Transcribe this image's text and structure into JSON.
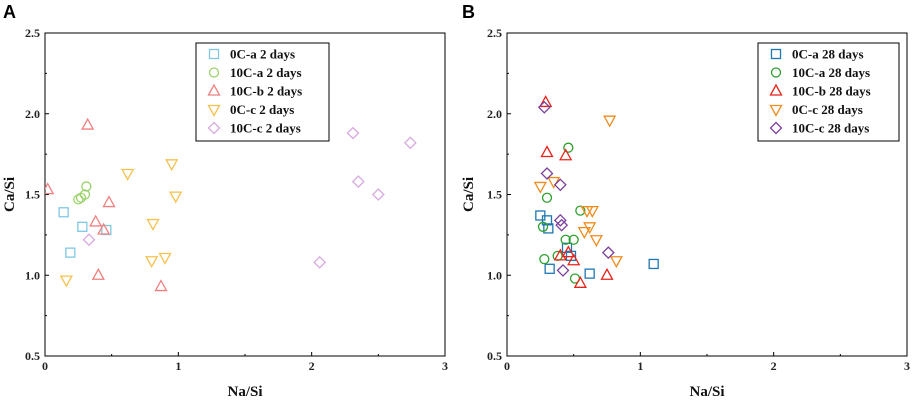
{
  "chart_data": [
    {
      "type": "scatter",
      "panel_label": "A",
      "xlabel": "Na/Si",
      "ylabel": "Ca/Si",
      "xlim": [
        0,
        3
      ],
      "ylim": [
        0.5,
        2.5
      ],
      "xticks": [
        "0",
        "1",
        "2",
        "3"
      ],
      "yticks": [
        "0.5",
        "1.0",
        "1.5",
        "2.0",
        "2.5"
      ],
      "legend_position": "top-right",
      "series": [
        {
          "name": "0C-a 2 days",
          "marker": "square",
          "color": "#7ec8e3",
          "points": [
            [
              0.14,
              1.39
            ],
            [
              0.19,
              1.14
            ],
            [
              0.28,
              1.3
            ],
            [
              0.46,
              1.28
            ]
          ]
        },
        {
          "name": "10C-a 2 days",
          "marker": "circle",
          "color": "#9ad36a",
          "points": [
            [
              0.25,
              1.47
            ],
            [
              0.27,
              1.48
            ],
            [
              0.3,
              1.5
            ],
            [
              0.31,
              1.55
            ]
          ]
        },
        {
          "name": "10C-b 2 days",
          "marker": "triangle-up",
          "color": "#f08080",
          "points": [
            [
              0.02,
              1.53
            ],
            [
              0.32,
              1.93
            ],
            [
              0.38,
              1.33
            ],
            [
              0.4,
              1.0
            ],
            [
              0.44,
              1.28
            ],
            [
              0.48,
              1.45
            ],
            [
              0.87,
              0.93
            ]
          ]
        },
        {
          "name": "0C-c 2 days",
          "marker": "triangle-down",
          "color": "#f7c14e",
          "points": [
            [
              0.16,
              0.97
            ],
            [
              0.62,
              1.63
            ],
            [
              0.8,
              1.09
            ],
            [
              0.81,
              1.32
            ],
            [
              0.9,
              1.11
            ],
            [
              0.95,
              1.69
            ],
            [
              0.98,
              1.49
            ]
          ]
        },
        {
          "name": "10C-c 2 days",
          "marker": "diamond",
          "color": "#d8a8e0",
          "points": [
            [
              0.33,
              1.22
            ],
            [
              2.06,
              1.08
            ],
            [
              2.31,
              1.88
            ],
            [
              2.35,
              1.58
            ],
            [
              2.5,
              1.5
            ],
            [
              2.74,
              1.82
            ]
          ]
        }
      ]
    },
    {
      "type": "scatter",
      "panel_label": "B",
      "xlabel": "Na/Si",
      "ylabel": "Ca/Si",
      "xlim": [
        0,
        3
      ],
      "ylim": [
        0.5,
        2.5
      ],
      "xticks": [
        "0",
        "1",
        "2",
        "3"
      ],
      "yticks": [
        "0.5",
        "1.0",
        "1.5",
        "2.0",
        "2.5"
      ],
      "legend_position": "top-right",
      "series": [
        {
          "name": "0C-a 28 days",
          "marker": "square",
          "color": "#1f77b4",
          "points": [
            [
              0.25,
              1.37
            ],
            [
              0.3,
              1.34
            ],
            [
              0.31,
              1.29
            ],
            [
              0.32,
              1.04
            ],
            [
              0.45,
              1.17
            ],
            [
              0.48,
              1.12
            ],
            [
              0.62,
              1.01
            ],
            [
              1.1,
              1.07
            ]
          ]
        },
        {
          "name": "10C-a 28 days",
          "marker": "circle",
          "color": "#2ca02c",
          "points": [
            [
              0.27,
              1.3
            ],
            [
              0.28,
              1.1
            ],
            [
              0.3,
              1.48
            ],
            [
              0.38,
              1.12
            ],
            [
              0.44,
              1.22
            ],
            [
              0.46,
              1.79
            ],
            [
              0.5,
              1.22
            ],
            [
              0.51,
              0.98
            ],
            [
              0.55,
              1.4
            ]
          ]
        },
        {
          "name": "10C-b 28 days",
          "marker": "triangle-up",
          "color": "#e8231b",
          "points": [
            [
              0.29,
              2.07
            ],
            [
              0.3,
              1.76
            ],
            [
              0.4,
              1.12
            ],
            [
              0.44,
              1.74
            ],
            [
              0.46,
              1.14
            ],
            [
              0.5,
              1.09
            ],
            [
              0.55,
              0.95
            ],
            [
              0.75,
              1.0
            ]
          ]
        },
        {
          "name": "0C-c 28 days",
          "marker": "triangle-down",
          "color": "#f08c1b",
          "points": [
            [
              0.25,
              1.55
            ],
            [
              0.35,
              1.58
            ],
            [
              0.58,
              1.27
            ],
            [
              0.6,
              1.4
            ],
            [
              0.62,
              1.3
            ],
            [
              0.64,
              1.4
            ],
            [
              0.67,
              1.22
            ],
            [
              0.77,
              1.96
            ],
            [
              0.82,
              1.09
            ]
          ]
        },
        {
          "name": "10C-c 28 days",
          "marker": "diamond",
          "color": "#7b3f9e",
          "points": [
            [
              0.28,
              2.04
            ],
            [
              0.3,
              1.63
            ],
            [
              0.4,
              1.56
            ],
            [
              0.4,
              1.34
            ],
            [
              0.41,
              1.31
            ],
            [
              0.42,
              1.03
            ],
            [
              0.76,
              1.14
            ]
          ]
        }
      ]
    }
  ]
}
